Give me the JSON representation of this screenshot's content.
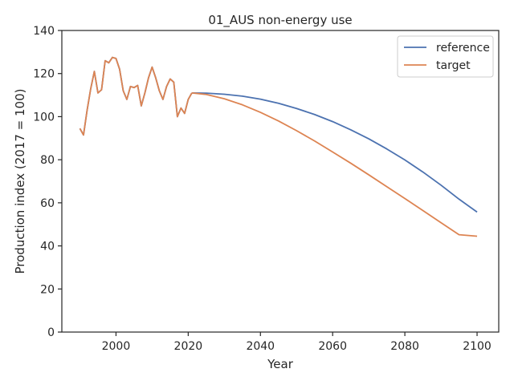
{
  "chart_data": {
    "type": "line",
    "title": "01_AUS non-energy use",
    "xlabel": "Year",
    "ylabel": "Production index (2017 = 100)",
    "xlim": [
      1985,
      2106
    ],
    "ylim": [
      0,
      140
    ],
    "xticks": [
      2000,
      2020,
      2040,
      2060,
      2080,
      2100
    ],
    "yticks": [
      0,
      20,
      40,
      60,
      80,
      100,
      120,
      140
    ],
    "grid": false,
    "legend_position": "top-right",
    "history": {
      "years": [
        1990,
        1991,
        1992,
        1993,
        1994,
        1995,
        1996,
        1997,
        1998,
        1999,
        2000,
        2001,
        2002,
        2003,
        2004,
        2005,
        2006,
        2007,
        2008,
        2009,
        2010,
        2011,
        2012,
        2013,
        2014,
        2015,
        2016,
        2017,
        2018,
        2019,
        2020,
        2021
      ],
      "values": [
        94.5,
        91.5,
        103,
        113,
        121,
        111,
        112.5,
        126,
        125,
        127.5,
        127,
        122,
        112,
        108,
        114,
        113.5,
        114.5,
        105,
        111,
        118,
        123,
        118,
        112,
        108,
        114,
        117.5,
        116,
        100,
        104,
        101.5,
        108,
        111
      ]
    },
    "series": [
      {
        "name": "reference",
        "color": "#4c72b0",
        "x": [
          2021,
          2025,
          2030,
          2035,
          2040,
          2045,
          2050,
          2055,
          2060,
          2065,
          2070,
          2075,
          2080,
          2085,
          2090,
          2095,
          2100
        ],
        "values": [
          111,
          110.9,
          110.4,
          109.5,
          108.1,
          106.2,
          103.8,
          101,
          97.7,
          93.9,
          89.7,
          85,
          79.9,
          74.3,
          68.2,
          61.7,
          55.7
        ]
      },
      {
        "name": "target",
        "color": "#dd8452",
        "x": [
          2021,
          2025,
          2030,
          2035,
          2040,
          2045,
          2050,
          2055,
          2060,
          2065,
          2070,
          2075,
          2080,
          2085,
          2090,
          2095,
          2100
        ],
        "values": [
          111,
          110.3,
          108.3,
          105.5,
          102,
          98,
          93.5,
          88.7,
          83.6,
          78.4,
          73,
          67.5,
          62,
          56.4,
          50.8,
          45.2,
          44.5
        ]
      }
    ]
  }
}
